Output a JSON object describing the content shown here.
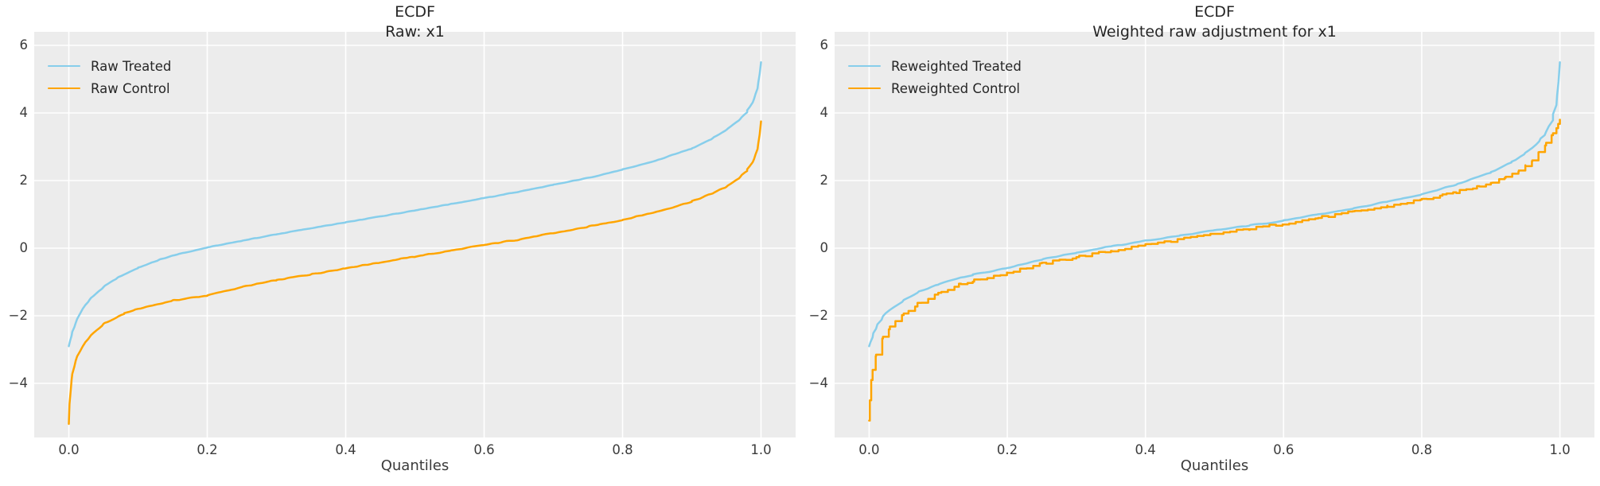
{
  "figure": {
    "background": "#ffffff",
    "panel_background": "#ececec",
    "grid_color": "#ffffff",
    "title_color": "#262626",
    "tick_color": "#3b3b3b",
    "treated_color": "#87CEEB",
    "control_color": "#FFA500"
  },
  "chart_data": [
    {
      "type": "line",
      "title": "ECDF",
      "subtitle": "Raw: x1",
      "xlabel": "Quantiles",
      "ylabel": "",
      "xlim": [
        -0.05,
        1.05
      ],
      "ylim": [
        -5.6,
        6.4
      ],
      "xticks": [
        0.0,
        0.2,
        0.4,
        0.6,
        0.8,
        1.0
      ],
      "xtick_labels": [
        "0.0",
        "0.2",
        "0.4",
        "0.6",
        "0.8",
        "1.0"
      ],
      "yticks": [
        6,
        4,
        2,
        0,
        -2,
        -4
      ],
      "ytick_labels": [
        "6",
        "4",
        "2",
        "0",
        "−2",
        "−4"
      ],
      "grid": true,
      "legend_position": "upper left",
      "series": [
        {
          "name": "Raw Treated",
          "color": "#87CEEB",
          "x": [
            0,
            0.002,
            0.005,
            0.01,
            0.02,
            0.03,
            0.05,
            0.07,
            0.1,
            0.13,
            0.15,
            0.2,
            0.25,
            0.3,
            0.35,
            0.4,
            0.45,
            0.5,
            0.55,
            0.6,
            0.65,
            0.7,
            0.75,
            0.8,
            0.85,
            0.9,
            0.93,
            0.95,
            0.97,
            0.98,
            0.99,
            0.995,
            0.998,
            1
          ],
          "y": [
            -2.9,
            -2.72,
            -2.5,
            -2.2,
            -1.78,
            -1.52,
            -1.15,
            -0.88,
            -0.58,
            -0.35,
            -0.22,
            0.02,
            0.22,
            0.41,
            0.59,
            0.76,
            0.94,
            1.12,
            1.3,
            1.48,
            1.67,
            1.87,
            2.08,
            2.32,
            2.6,
            2.95,
            3.25,
            3.5,
            3.82,
            4.05,
            4.4,
            4.75,
            5.1,
            5.5
          ]
        },
        {
          "name": "Raw Control",
          "color": "#FFA500",
          "x": [
            0,
            0.001,
            0.003,
            0.005,
            0.01,
            0.02,
            0.03,
            0.05,
            0.08,
            0.1,
            0.15,
            0.2,
            0.25,
            0.3,
            0.35,
            0.4,
            0.45,
            0.5,
            0.55,
            0.6,
            0.65,
            0.7,
            0.75,
            0.8,
            0.85,
            0.9,
            0.93,
            0.95,
            0.97,
            0.98,
            0.99,
            0.995,
            0.998,
            1
          ],
          "y": [
            -5.2,
            -4.6,
            -4.05,
            -3.75,
            -3.3,
            -2.9,
            -2.62,
            -2.25,
            -1.93,
            -1.8,
            -1.55,
            -1.4,
            -1.15,
            -0.95,
            -0.77,
            -0.59,
            -0.42,
            -0.25,
            -0.08,
            0.09,
            0.26,
            0.44,
            0.63,
            0.84,
            1.08,
            1.38,
            1.62,
            1.82,
            2.1,
            2.3,
            2.62,
            2.95,
            3.3,
            3.75
          ]
        }
      ]
    },
    {
      "type": "line",
      "title": "ECDF",
      "subtitle": "Weighted raw adjustment for x1",
      "xlabel": "Quantiles",
      "ylabel": "",
      "xlim": [
        -0.05,
        1.05
      ],
      "ylim": [
        -5.6,
        6.4
      ],
      "xticks": [
        0.0,
        0.2,
        0.4,
        0.6,
        0.8,
        1.0
      ],
      "xtick_labels": [
        "0.0",
        "0.2",
        "0.4",
        "0.6",
        "0.8",
        "1.0"
      ],
      "yticks": [
        6,
        4,
        2,
        0,
        -2,
        -4
      ],
      "ytick_labels": [
        "6",
        "4",
        "2",
        "0",
        "−2",
        "−4"
      ],
      "grid": true,
      "legend_position": "upper left",
      "series": [
        {
          "name": "Reweighted Treated",
          "color": "#87CEEB",
          "x": [
            0,
            0.002,
            0.005,
            0.01,
            0.02,
            0.03,
            0.05,
            0.07,
            0.1,
            0.13,
            0.15,
            0.2,
            0.25,
            0.3,
            0.35,
            0.4,
            0.45,
            0.5,
            0.55,
            0.6,
            0.65,
            0.7,
            0.75,
            0.8,
            0.85,
            0.9,
            0.93,
            0.95,
            0.97,
            0.98,
            0.99,
            0.995,
            0.998,
            1
          ],
          "y": [
            -2.9,
            -2.8,
            -2.6,
            -2.35,
            -2.02,
            -1.83,
            -1.55,
            -1.32,
            -1.07,
            -0.89,
            -0.78,
            -0.58,
            -0.33,
            -0.13,
            0.05,
            0.22,
            0.37,
            0.52,
            0.67,
            0.82,
            0.99,
            1.17,
            1.37,
            1.6,
            1.88,
            2.25,
            2.55,
            2.8,
            3.15,
            3.42,
            3.85,
            4.3,
            4.85,
            5.5
          ]
        },
        {
          "name": "Reweighted Control",
          "color": "#FFA500",
          "x": [
            0,
            0.001,
            0.003,
            0.005,
            0.01,
            0.02,
            0.03,
            0.05,
            0.07,
            0.1,
            0.13,
            0.15,
            0.2,
            0.25,
            0.3,
            0.35,
            0.4,
            0.45,
            0.5,
            0.55,
            0.6,
            0.65,
            0.7,
            0.75,
            0.8,
            0.83,
            0.85,
            0.88,
            0.9,
            0.92,
            0.94,
            0.95,
            0.96,
            0.97,
            0.98,
            0.99,
            0.995,
            1
          ],
          "y": [
            -5.1,
            -4.5,
            -3.9,
            -3.6,
            -3.15,
            -2.62,
            -2.32,
            -1.92,
            -1.65,
            -1.32,
            -1.08,
            -0.97,
            -0.72,
            -0.46,
            -0.26,
            -0.08,
            0.1,
            0.26,
            0.42,
            0.57,
            0.73,
            0.9,
            1.07,
            1.24,
            1.44,
            1.56,
            1.66,
            1.82,
            1.95,
            2.1,
            2.3,
            2.42,
            2.6,
            2.85,
            3.1,
            3.4,
            3.55,
            3.8
          ]
        }
      ]
    }
  ]
}
